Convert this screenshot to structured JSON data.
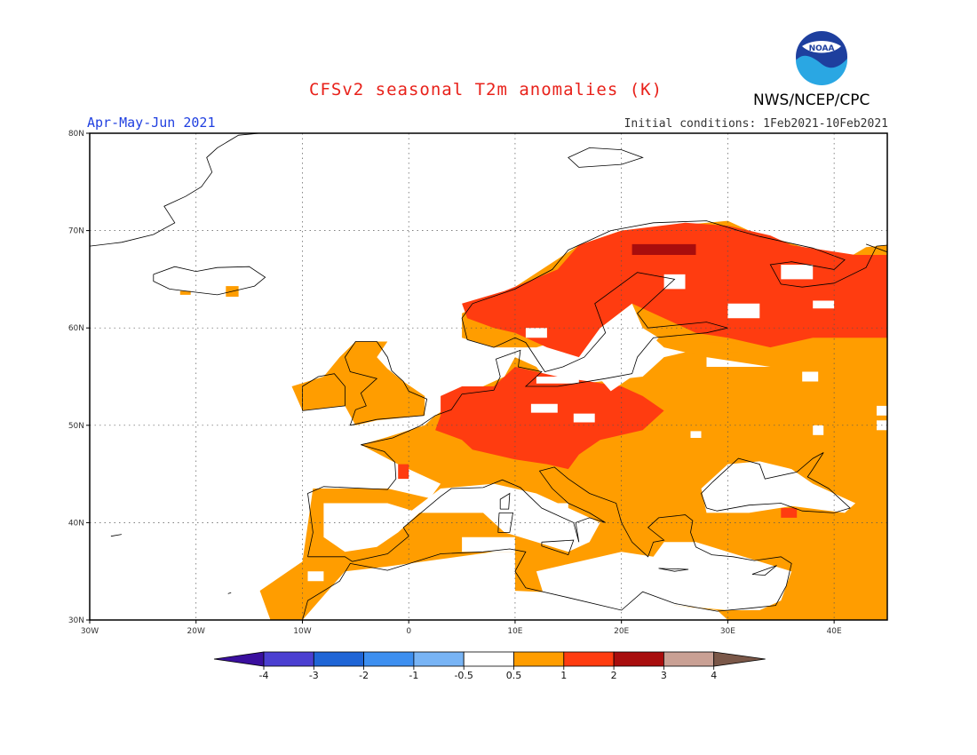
{
  "title": "CFSv2 seasonal T2m anomalies (K)",
  "agency": "NWS/NCEP/CPC",
  "logo_text": "NOAA",
  "period": "Apr-May-Jun 2021",
  "initial_conditions": "Initial conditions: 1Feb2021-10Feb2021",
  "colors": {
    "title": "#e8211a",
    "period": "#1f3fe0",
    "lt_m4": "#3a0f9e",
    "m4_m3": "#4b3fd1",
    "m3_m2": "#1f65d6",
    "m2_m1": "#3d8ff0",
    "m1_m05": "#78b4f5",
    "neutral": "#ffffff",
    "p05_1": "#ff9d00",
    "p1_2": "#ff3c10",
    "p2_3": "#a80d0d",
    "p3_4": "#c9a094",
    "gt4": "#7a5748"
  },
  "map": {
    "lon_range": [
      -30,
      45
    ],
    "lat_range": [
      30,
      80
    ],
    "lon_labels": [
      "30W",
      "20W",
      "10W",
      "0",
      "10E",
      "20E",
      "30E",
      "40E"
    ],
    "lat_labels": [
      "30N",
      "40N",
      "50N",
      "60N",
      "70N",
      "80N"
    ],
    "lon_ticks": [
      -30,
      -20,
      -10,
      0,
      10,
      20,
      30,
      40
    ],
    "lat_ticks": [
      30,
      40,
      50,
      60,
      70,
      80
    ]
  },
  "colorbar": {
    "levels": [
      "-4",
      "-3",
      "-2",
      "-1",
      "-0.5",
      "0.5",
      "1",
      "2",
      "3",
      "4"
    ]
  }
}
